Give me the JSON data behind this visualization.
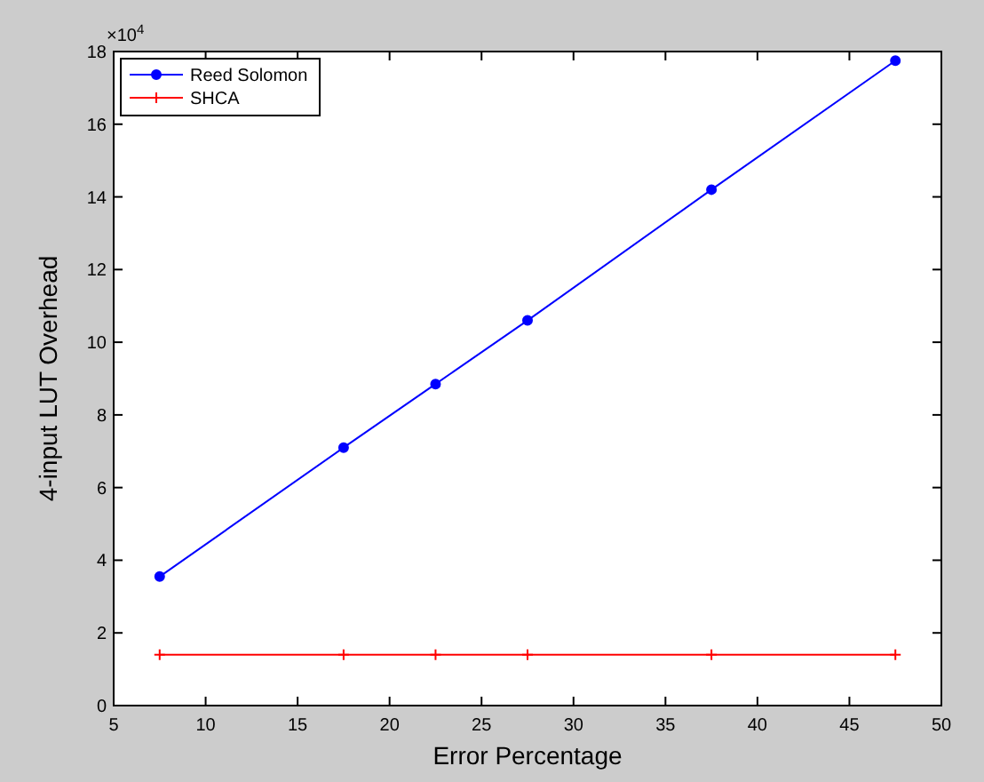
{
  "chart_data": {
    "type": "line",
    "xlabel": "Error Percentage",
    "ylabel": "4-input LUT Overhead",
    "annotations": [
      "×10$^{4}$"
    ],
    "x": [
      7.5,
      17.5,
      22.5,
      27.5,
      37.5,
      47.5
    ],
    "series": [
      {
        "name": "Reed Solomon",
        "color": "#0000ff",
        "marker": "circle",
        "values": [
          3.55,
          7.1,
          8.85,
          10.6,
          14.2,
          17.75
        ]
      },
      {
        "name": "SHCA",
        "color": "#ff0000",
        "marker": "cross",
        "values": [
          1.4,
          1.4,
          1.4,
          1.4,
          1.4,
          1.4
        ]
      }
    ],
    "xlim": [
      5,
      50
    ],
    "xticks": [
      5,
      10,
      15,
      20,
      25,
      30,
      35,
      40,
      45,
      50
    ],
    "ylim": [
      0,
      18
    ],
    "yticks": [
      0,
      2,
      4,
      6,
      8,
      10,
      12,
      14,
      16,
      18
    ],
    "grid": false,
    "legend": "top left",
    "line_style": "solid"
  }
}
